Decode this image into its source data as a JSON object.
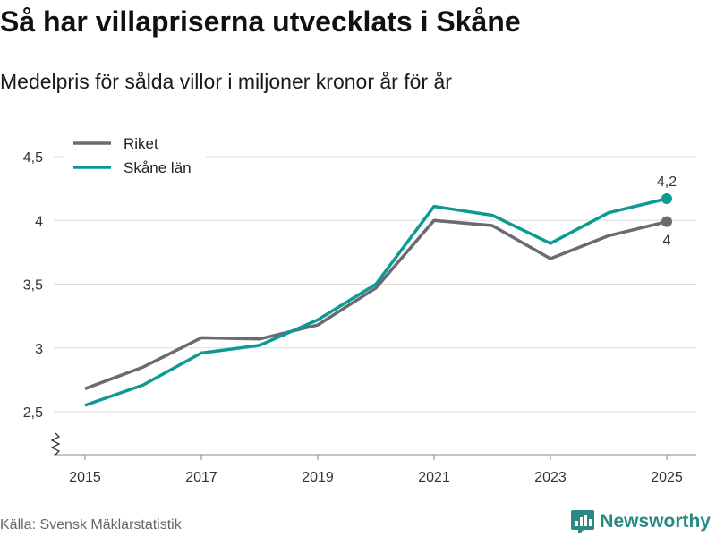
{
  "title": "Så har villapriserna utvecklats i Skåne",
  "subtitle": "Medelpris för sålda villor i miljoner kronor år för år",
  "source": "Källa: Svensk Mäklarstatistik",
  "brand": {
    "name": "Newsworthy",
    "icon": "bar-chart-logo-icon"
  },
  "colors": {
    "riket": "#6b6a70",
    "skane": "#0d9a93",
    "grid": "#dddddd",
    "brand": "#2a8a83"
  },
  "chart_data": {
    "type": "line",
    "title": "Så har villapriserna utvecklats i Skåne",
    "xlabel": "",
    "ylabel": "",
    "x": [
      2015,
      2016,
      2017,
      2018,
      2019,
      2020,
      2021,
      2022,
      2023,
      2024,
      2025
    ],
    "x_tick_labels": [
      "2015",
      "2017",
      "2019",
      "2021",
      "2023",
      "2025"
    ],
    "y_ticks": [
      2.5,
      3,
      3.5,
      4,
      4.5
    ],
    "y_tick_labels": [
      "2,5",
      "3",
      "3,5",
      "4",
      "4,5"
    ],
    "ylim": [
      2.5,
      4.5
    ],
    "axis_break": true,
    "legend_position": "top-left",
    "series": [
      {
        "name": "Riket",
        "color": "#6b6a70",
        "values": [
          2.68,
          2.85,
          3.08,
          3.07,
          3.18,
          3.47,
          4.0,
          3.96,
          3.7,
          3.88,
          3.99
        ],
        "end_label": "4"
      },
      {
        "name": "Skåne län",
        "color": "#0d9a93",
        "values": [
          2.55,
          2.71,
          2.96,
          3.02,
          3.22,
          3.5,
          4.11,
          4.04,
          3.82,
          4.06,
          4.17
        ],
        "end_label": "4,2"
      }
    ]
  }
}
